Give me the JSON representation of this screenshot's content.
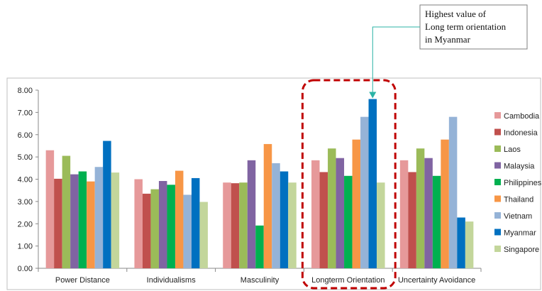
{
  "chart_data": {
    "type": "bar",
    "title": "",
    "xlabel": "",
    "ylabel": "",
    "ylim": [
      0,
      8
    ],
    "yticks": [
      "0.00",
      "1.00",
      "2.00",
      "3.00",
      "4.00",
      "5.00",
      "6.00",
      "7.00",
      "8.00"
    ],
    "grid": false,
    "legend_position": "right",
    "categories": [
      "Power Distance",
      "Individualisms",
      "Masculinity",
      "Longterm Orientation",
      "Uncertainty Avoidance"
    ],
    "series": [
      {
        "name": "Cambodia",
        "color": "#e6999a",
        "values": [
          5.3,
          4.0,
          3.85,
          4.85,
          4.85
        ]
      },
      {
        "name": "Indonesia",
        "color": "#c0504d",
        "values": [
          4.02,
          3.35,
          3.82,
          4.32,
          4.32
        ]
      },
      {
        "name": "Laos",
        "color": "#9bbb59",
        "values": [
          5.05,
          3.55,
          3.85,
          5.38,
          5.38
        ]
      },
      {
        "name": "Malaysia",
        "color": "#8064a2",
        "values": [
          4.22,
          3.92,
          4.85,
          4.95,
          4.95
        ]
      },
      {
        "name": "Philippines",
        "color": "#00b050",
        "values": [
          4.35,
          3.75,
          1.92,
          4.15,
          4.15
        ]
      },
      {
        "name": "Thailand",
        "color": "#f79646",
        "values": [
          3.9,
          4.38,
          5.58,
          5.78,
          5.78
        ]
      },
      {
        "name": "Vietnam",
        "color": "#95b3d7",
        "values": [
          4.55,
          3.3,
          4.72,
          6.8,
          6.8
        ]
      },
      {
        "name": "Myanmar",
        "color": "#0070c0",
        "values": [
          5.72,
          4.05,
          4.35,
          7.6,
          2.28
        ]
      },
      {
        "name": "Singapore",
        "color": "#c3d69b",
        "values": [
          4.3,
          2.98,
          3.85,
          3.85,
          2.1
        ]
      }
    ],
    "highlight_category": "Longterm Orientation",
    "annotation": {
      "lines": [
        "Highest value of",
        "Long term orientation",
        "in Myanmar"
      ]
    }
  }
}
